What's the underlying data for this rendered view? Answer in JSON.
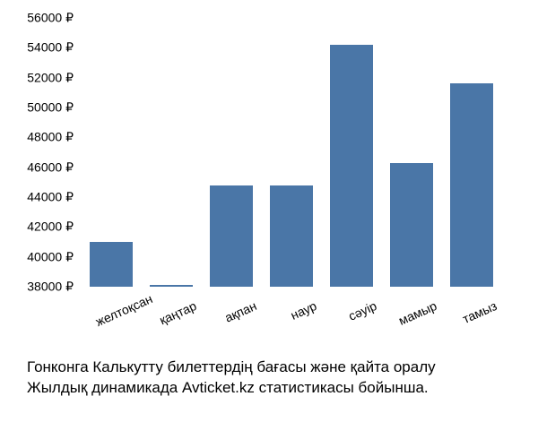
{
  "chart": {
    "type": "bar",
    "categories": [
      "желтоқсан",
      "қаңтар",
      "ақпан",
      "наур",
      "сәуір",
      "мамыр",
      "тамыз"
    ],
    "values": [
      41000,
      38100,
      44800,
      44800,
      54200,
      46300,
      51600
    ],
    "bar_color": "#4a76a7",
    "background_color": "#ffffff",
    "ylim_min": 38000,
    "ylim_max": 56000,
    "ytick_step": 2000,
    "yticks": [
      38000,
      40000,
      42000,
      44000,
      46000,
      48000,
      50000,
      52000,
      54000,
      56000
    ],
    "ytick_labels": [
      "38000 ₽",
      "40000 ₽",
      "42000 ₽",
      "44000 ₽",
      "46000 ₽",
      "48000 ₽",
      "50000 ₽",
      "52000 ₽",
      "54000 ₽",
      "56000 ₽"
    ],
    "tick_color": "#000000",
    "tick_fontsize": 14,
    "bar_width_ratio": 0.7,
    "x_label_rotation_deg": -24
  },
  "caption": {
    "line1": "Гонконга Калькутту билеттердің бағасы және қайта оралу",
    "line2": "Жылдық динамикада Avticket.kz статистикасы бойынша."
  }
}
